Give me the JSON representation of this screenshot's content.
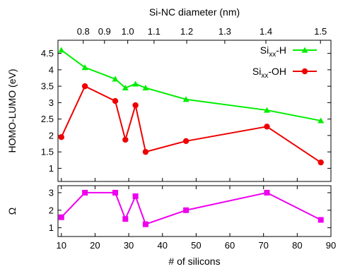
{
  "chart_data": [
    {
      "type": "line",
      "panel": "top",
      "xlabel": "",
      "ylabel": "HOMO-LUMO (eV)",
      "xlim": [
        9,
        90
      ],
      "ylim": [
        0.6,
        4.9
      ],
      "yticks": [
        1,
        1.5,
        2,
        2.5,
        3,
        3.5,
        4,
        4.5
      ],
      "ytick_labels": [
        "1",
        "1.5",
        "2",
        "2.5",
        "3",
        "3.5",
        "4",
        "4.5"
      ],
      "top_axis": {
        "label": "Si-NC diameter (nm)",
        "ticks": [
          {
            "label": "0.8",
            "x": 16.5
          },
          {
            "label": "0.9",
            "x": 22.8
          },
          {
            "label": "1.0",
            "x": 29.7
          },
          {
            "label": "1.1",
            "x": 37.5
          },
          {
            "label": "1.2",
            "x": 47.2
          },
          {
            "label": "1.3",
            "x": 58.5
          },
          {
            "label": "1.4",
            "x": 70.7
          },
          {
            "label": "1.5",
            "x": 86.9
          }
        ]
      },
      "grid": false,
      "legend_position": "top-right",
      "series": [
        {
          "name": "H",
          "legend_prefix": "Si",
          "legend_sub": "xx",
          "legend_suffix": "-H",
          "color": "#00ee00",
          "marker": "triangle",
          "x": [
            10,
            17,
            26,
            29,
            32,
            35,
            47,
            71,
            87
          ],
          "y": [
            4.6,
            4.07,
            3.72,
            3.45,
            3.57,
            3.45,
            3.1,
            2.77,
            2.45
          ]
        },
        {
          "name": "OH",
          "legend_prefix": "Si",
          "legend_sub": "xx",
          "legend_suffix": "-OH",
          "color": "#ee0000",
          "marker": "circle",
          "x": [
            10,
            17,
            26,
            29,
            32,
            35,
            47,
            71,
            87
          ],
          "y": [
            1.95,
            3.5,
            3.05,
            1.87,
            2.92,
            1.5,
            1.83,
            2.27,
            1.18
          ]
        }
      ]
    },
    {
      "type": "line",
      "panel": "bottom",
      "xlabel": "# of silicons",
      "ylabel": "Ω",
      "xlim": [
        9,
        90
      ],
      "ylim": [
        0.5,
        3.4
      ],
      "xticks": [
        10,
        20,
        30,
        40,
        50,
        60,
        70,
        80,
        90
      ],
      "xtick_labels": [
        "10",
        "20",
        "30",
        "40",
        "50",
        "60",
        "70",
        "80",
        "90"
      ],
      "yticks": [
        1,
        2,
        3
      ],
      "ytick_labels": [
        "1",
        "2",
        "3"
      ],
      "grid": false,
      "series": [
        {
          "color": "#ee00ee",
          "marker": "square",
          "x": [
            10,
            17,
            26,
            29,
            32,
            35,
            47,
            71,
            87
          ],
          "y": [
            1.6,
            3.0,
            3.0,
            1.5,
            2.8,
            1.2,
            2.0,
            3.0,
            1.45
          ]
        }
      ]
    }
  ]
}
